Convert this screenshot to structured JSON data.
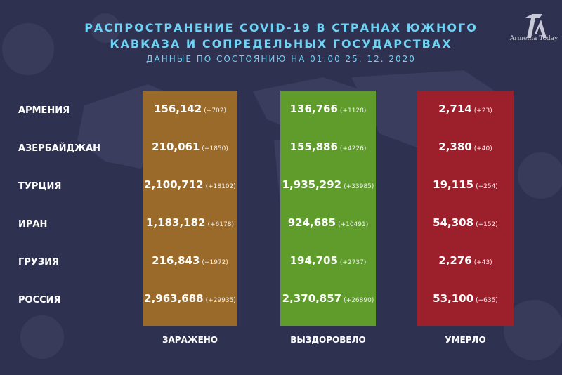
{
  "header": {
    "title_line1": "РАСПРОСТРАНЕНИЕ COVID-19 В СТРАНАХ ЮЖНОГО",
    "title_line2": "КАВКАЗА И СОПРЕДЕЛЬНЫХ ГОСУДАРСТВАХ",
    "subtitle": "ДАННЫЕ ПО СОСТОЯНИЮ НА 01:00  25. 12. 2020"
  },
  "logo": {
    "text": "Armenia Today"
  },
  "columns": {
    "infected": "ЗАРАЖЕНО",
    "recovered": "ВЫЗДОРОВЕЛО",
    "deaths": "УМЕРЛО"
  },
  "colors": {
    "background": "#2f3150",
    "title": "#6fd3f5",
    "infected": "#9a6a2a",
    "recovered": "#5f9c2c",
    "deaths": "#9c1f2c"
  },
  "rows": [
    {
      "country": "АРМЕНИЯ",
      "infected": "156,142",
      "infected_delta": "(+702)",
      "recovered": "136,766",
      "recovered_delta": "(+1128)",
      "deaths": "2,714",
      "deaths_delta": "(+23)"
    },
    {
      "country": "АЗЕРБАЙДЖАН",
      "infected": "210,061",
      "infected_delta": "(+1850)",
      "recovered": "155,886",
      "recovered_delta": "(+4226)",
      "deaths": "2,380",
      "deaths_delta": "(+40)"
    },
    {
      "country": "ТУРЦИЯ",
      "infected": "2,100,712",
      "infected_delta": "(+18102)",
      "recovered": "1,935,292",
      "recovered_delta": "(+33985)",
      "deaths": "19,115",
      "deaths_delta": "(+254)"
    },
    {
      "country": "ИРАН",
      "infected": "1,183,182",
      "infected_delta": "(+6178)",
      "recovered": "924,685",
      "recovered_delta": "(+10491)",
      "deaths": "54,308",
      "deaths_delta": "(+152)"
    },
    {
      "country": "ГРУЗИЯ",
      "infected": "216,843",
      "infected_delta": "(+1972)",
      "recovered": "194,705",
      "recovered_delta": "(+2737)",
      "deaths": "2,276",
      "deaths_delta": "(+43)"
    },
    {
      "country": "РОССИЯ",
      "infected": "2,963,688",
      "infected_delta": "(+29935)",
      "recovered": "2,370,857",
      "recovered_delta": "(+26890)",
      "deaths": "53,100",
      "deaths_delta": "(+635)"
    }
  ]
}
